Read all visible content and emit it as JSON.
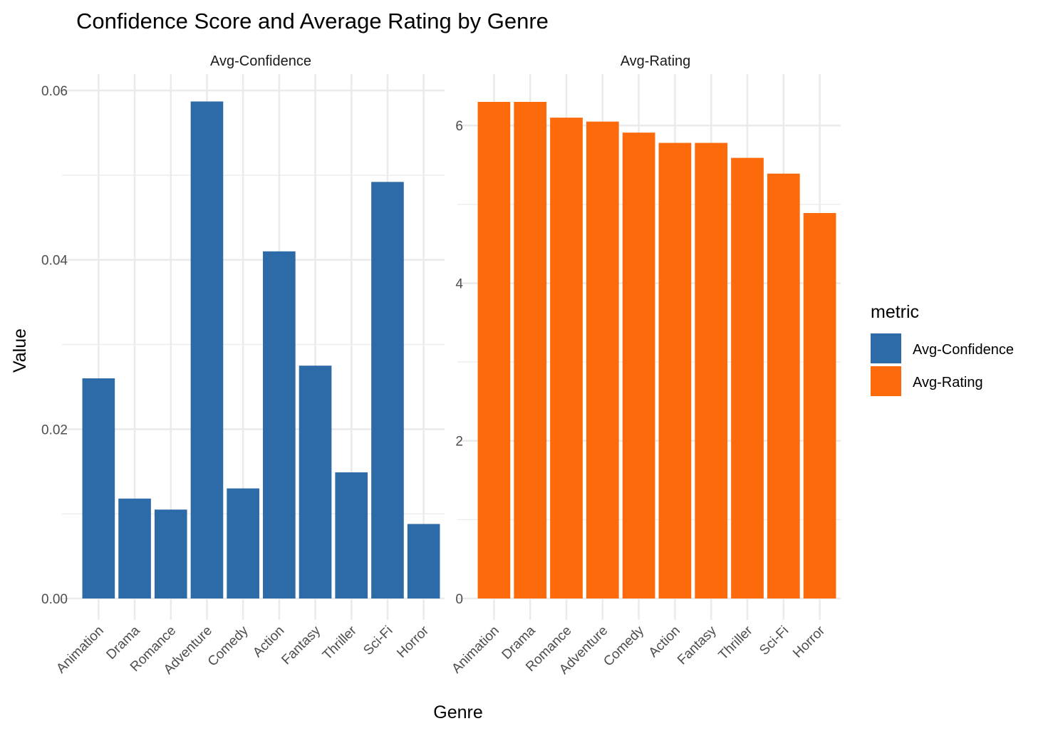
{
  "chart_data": {
    "type": "bar",
    "title": "Confidence Score and Average Rating by Genre",
    "xlabel": "Genre",
    "ylabel": "Value",
    "categories": [
      "Animation",
      "Drama",
      "Romance",
      "Adventure",
      "Comedy",
      "Action",
      "Fantasy",
      "Thriller",
      "Sci-Fi",
      "Horror"
    ],
    "legend": {
      "title": "metric",
      "position": "right",
      "entries": [
        {
          "label": "Avg-Confidence",
          "color": "#2c6aa8"
        },
        {
          "label": "Avg-Rating",
          "color": "#fc6a0c"
        }
      ]
    },
    "grid": true,
    "panels": [
      {
        "strip": "Avg-Confidence",
        "color": "#2c6aa8",
        "ylim": [
          0,
          0.06
        ],
        "yticks": [
          0,
          0.02,
          0.04,
          0.06
        ],
        "ytick_labels": [
          "0.00",
          "0.02",
          "0.04",
          "0.06"
        ],
        "values": [
          0.026,
          0.0118,
          0.0105,
          0.0587,
          0.013,
          0.041,
          0.0275,
          0.0149,
          0.0492,
          0.0088
        ]
      },
      {
        "strip": "Avg-Rating",
        "color": "#fc6a0c",
        "ylim": [
          0,
          6.3
        ],
        "yticks": [
          0,
          2,
          4,
          6
        ],
        "ytick_labels": [
          "0",
          "2",
          "4",
          "6"
        ],
        "values": [
          6.3,
          6.3,
          6.1,
          6.05,
          5.91,
          5.78,
          5.78,
          5.59,
          5.39,
          4.89
        ]
      }
    ]
  }
}
